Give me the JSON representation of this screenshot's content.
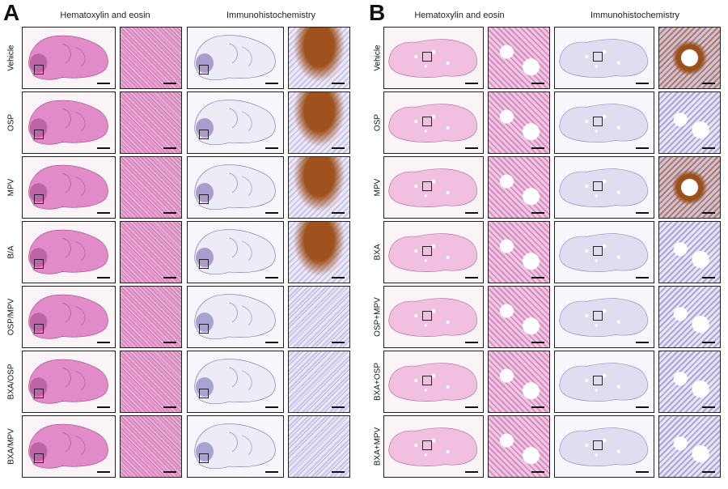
{
  "panels": [
    {
      "letter": "A",
      "col_titles": {
        "he": "Hematoxylin and eosin",
        "ihc": "Immunohistochemistry"
      },
      "rows": [
        "Vehicle",
        "OSP",
        "MPV",
        "B/A",
        "OSP/MPV",
        "BXA/OSP",
        "BXA/MPV"
      ],
      "tissue": "brain",
      "ihc_positive_rows": [
        "Vehicle",
        "OSP",
        "MPV",
        "B/A"
      ]
    },
    {
      "letter": "B",
      "col_titles": {
        "he": "Hematoxylin and eosin",
        "ihc": "Immunohistochemistry"
      },
      "rows": [
        "Vehicle",
        "OSP",
        "MPV",
        "BXA",
        "OSP+MPV",
        "BXA+OSP",
        "BXA+MPV"
      ],
      "tissue": "lung",
      "ihc_positive_rows": [
        "Vehicle",
        "MPV"
      ]
    }
  ],
  "colors": {
    "he_stain": "#e08cc6",
    "ihc_hematoxylin": "#aaa6da",
    "dab_positive": "#9b4f1c",
    "border": "#222222"
  }
}
